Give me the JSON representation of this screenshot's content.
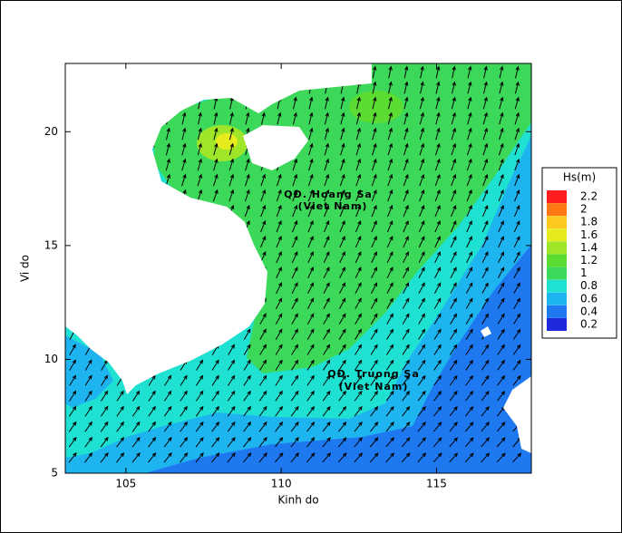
{
  "map": {
    "xlabel": "Kinh do",
    "ylabel": "Vi do",
    "xlim": [
      103.05,
      118.05
    ],
    "ylim": [
      5,
      23
    ],
    "xticks": [
      105,
      110,
      115
    ],
    "yticks": [
      5,
      10,
      15,
      20
    ],
    "legend": {
      "title": "Hs(m)",
      "levels": [
        {
          "value": 2.2,
          "color": "#ff1e1e"
        },
        {
          "value": 2,
          "color": "#ff7814"
        },
        {
          "value": 1.8,
          "color": "#ffc81e"
        },
        {
          "value": 1.6,
          "color": "#e6eb1e"
        },
        {
          "value": 1.4,
          "color": "#a0e628"
        },
        {
          "value": 1.2,
          "color": "#5adc32"
        },
        {
          "value": 1,
          "color": "#3cd85a"
        },
        {
          "value": 0.8,
          "color": "#1ee1d2"
        },
        {
          "value": 0.6,
          "color": "#1eb4f0"
        },
        {
          "value": 0.4,
          "color": "#1e78f0"
        },
        {
          "value": 0.2,
          "color": "#1e28dc"
        }
      ]
    },
    "annotations": [
      {
        "lines": [
          "QĐ. Hoang Sa",
          "(Viet Nam)"
        ]
      },
      {
        "lines": [
          "QĐ. Truong Sa",
          "(Viet Nam)"
        ]
      }
    ]
  }
}
